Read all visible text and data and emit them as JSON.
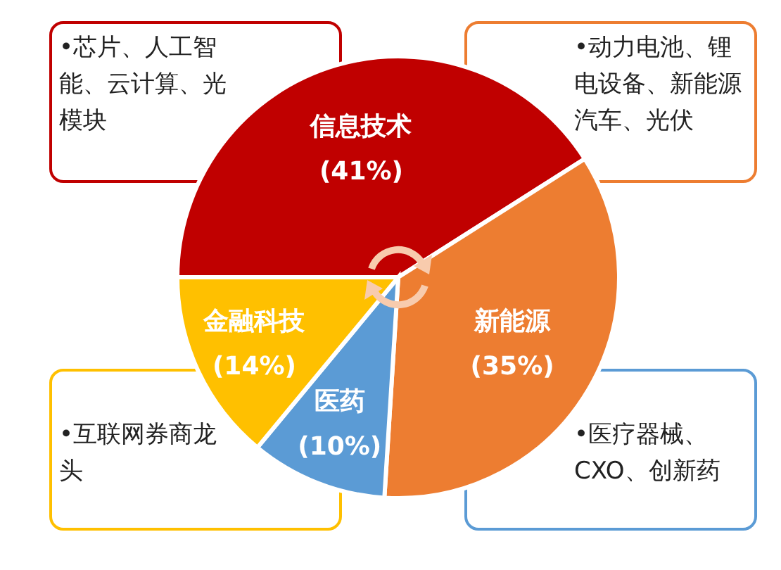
{
  "chart_data": {
    "type": "pie",
    "categories": [
      "信息技术",
      "新能源",
      "医药",
      "金融科技"
    ],
    "values": [
      41,
      35,
      10,
      14
    ],
    "value_labels": [
      "(41%)",
      "(35%)",
      "(10%)",
      "(14%)"
    ],
    "colors": [
      "#c00000",
      "#ed7d31",
      "#5b9bd5",
      "#ffc000"
    ],
    "annotations": [
      "•芯片、人工智能、云计算、光模块",
      "•动力电池、锂电设备、新能源汽车、光伏",
      "•医疗器械、CXO、创新药",
      "•互联网券商龙头"
    ]
  }
}
